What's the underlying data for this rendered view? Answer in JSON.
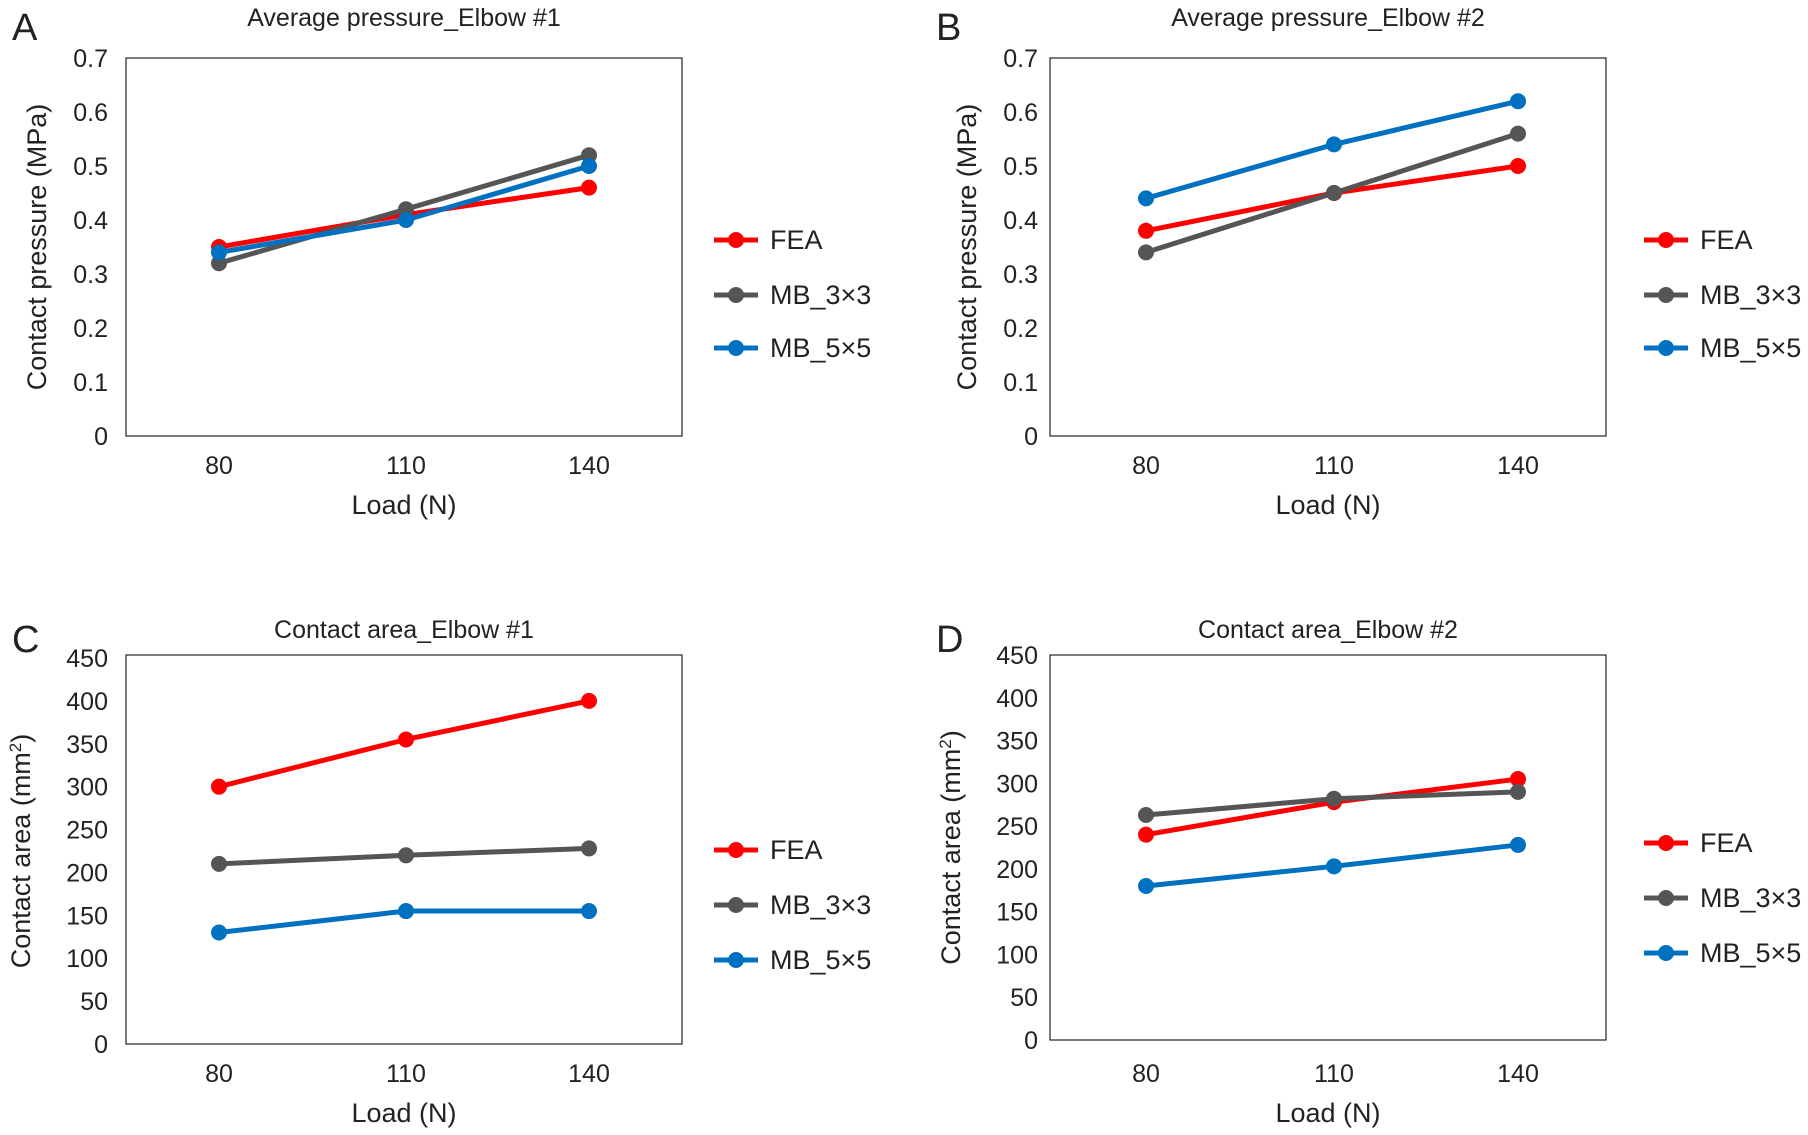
{
  "chart_data": [
    {
      "type": "line",
      "panel": "A",
      "title": "Average pressure_Elbow #1",
      "xlabel": "Load (N)",
      "ylabel": "Contact pressure (MPa)",
      "ylabel_sup": "",
      "ylabel_tail": "",
      "categories": [
        "80",
        "110",
        "140"
      ],
      "ylim": [
        0,
        0.7
      ],
      "yticks": [
        "0",
        "0.1",
        "0.2",
        "0.3",
        "0.4",
        "0.5",
        "0.6",
        "0.7"
      ],
      "grid": false,
      "legend": "right",
      "series": [
        {
          "name": "FEA",
          "color": "#ff0000",
          "values": [
            0.35,
            0.41,
            0.46
          ]
        },
        {
          "name": "MB_3×3",
          "color": "#555555",
          "values": [
            0.32,
            0.42,
            0.52
          ]
        },
        {
          "name": "MB_5×5",
          "color": "#0070c0",
          "values": [
            0.34,
            0.4,
            0.5
          ]
        }
      ]
    },
    {
      "type": "line",
      "panel": "B",
      "title": "Average pressure_Elbow #2",
      "xlabel": "Load (N)",
      "ylabel": "Contact pressure (MPa)",
      "ylabel_sup": "",
      "ylabel_tail": "",
      "categories": [
        "80",
        "110",
        "140"
      ],
      "ylim": [
        0,
        0.7
      ],
      "yticks": [
        "0",
        "0.1",
        "0.2",
        "0.3",
        "0.4",
        "0.5",
        "0.6",
        "0.7"
      ],
      "grid": false,
      "legend": "right",
      "series": [
        {
          "name": "FEA",
          "color": "#ff0000",
          "values": [
            0.38,
            0.45,
            0.5
          ]
        },
        {
          "name": "MB_3×3",
          "color": "#555555",
          "values": [
            0.34,
            0.45,
            0.56
          ]
        },
        {
          "name": "MB_5×5",
          "color": "#0070c0",
          "values": [
            0.44,
            0.54,
            0.62
          ]
        }
      ]
    },
    {
      "type": "line",
      "panel": "C",
      "title": "Contact area_Elbow #1",
      "xlabel": "Load (N)",
      "ylabel": "Contact area (mm",
      "ylabel_sup": "2",
      "ylabel_tail": ")",
      "categories": [
        "80",
        "110",
        "140"
      ],
      "ylim": [
        0,
        450
      ],
      "yticks": [
        "0",
        "50",
        "100",
        "150",
        "200",
        "250",
        "300",
        "350",
        "400",
        "450"
      ],
      "grid": false,
      "legend": "right",
      "series": [
        {
          "name": "FEA",
          "color": "#ff0000",
          "values": [
            300,
            355,
            400
          ]
        },
        {
          "name": "MB_3×3",
          "color": "#555555",
          "values": [
            210,
            220,
            228
          ]
        },
        {
          "name": "MB_5×5",
          "color": "#0070c0",
          "values": [
            130,
            155,
            155
          ]
        }
      ]
    },
    {
      "type": "line",
      "panel": "D",
      "title": "Contact area_Elbow #2",
      "xlabel": "Load (N)",
      "ylabel": "Contact area (mm",
      "ylabel_sup": "2",
      "ylabel_tail": ")",
      "categories": [
        "80",
        "110",
        "140"
      ],
      "ylim": [
        0,
        450
      ],
      "yticks": [
        "0",
        "50",
        "100",
        "150",
        "200",
        "250",
        "300",
        "350",
        "400",
        "450"
      ],
      "grid": false,
      "legend": "right",
      "series": [
        {
          "name": "FEA",
          "color": "#ff0000",
          "values": [
            240,
            278,
            305
          ]
        },
        {
          "name": "MB_3×3",
          "color": "#555555",
          "values": [
            263,
            282,
            290
          ]
        },
        {
          "name": "MB_5×5",
          "color": "#0070c0",
          "values": [
            180,
            203,
            228
          ]
        }
      ]
    }
  ]
}
